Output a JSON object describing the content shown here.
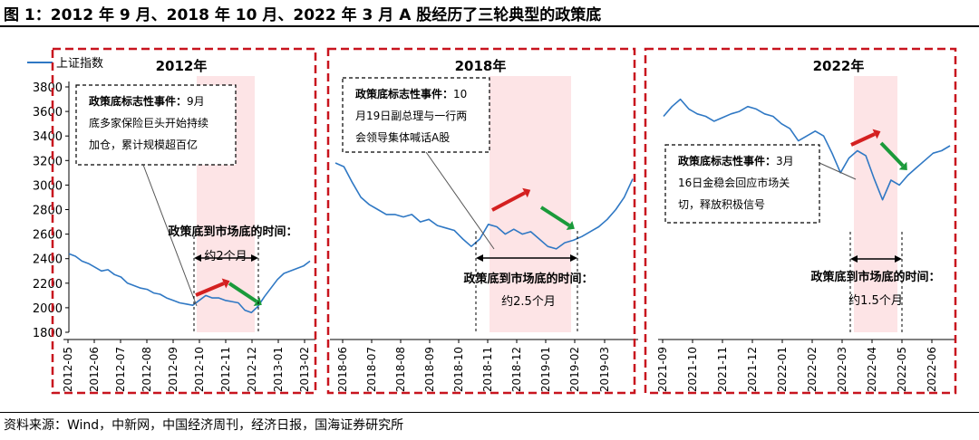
{
  "figure": {
    "title": "图 1：2012 年 9 月、2018 年 10 月、2022 年 3 月 A 股经历了三轮典型的政策底",
    "source": "资料来源：Wind，中新网，中国经济周刊，经济日报，国海证券研究所"
  },
  "chart_data": {
    "type": "line",
    "y_ticks": [
      "1800",
      "2000",
      "2200",
      "2400",
      "2600",
      "2800",
      "3000",
      "3200",
      "3400",
      "3600",
      "3800"
    ],
    "ylim": [
      1800,
      3900
    ],
    "grid": false,
    "legend": {
      "position": "top-left",
      "label": "上证指数",
      "color": "#2f78c4"
    },
    "series_color": "#2f78c4",
    "highlight_color": "#fde4e6",
    "frame_color": "#c8141e",
    "panels": [
      {
        "title": "2012年",
        "x_ticks": [
          "2012-05",
          "2012-06",
          "2012-07",
          "2012-08",
          "2012-09",
          "2012-10",
          "2012-11",
          "2012-12",
          "2013-01",
          "2013-02"
        ],
        "series": {
          "values": [
            2440,
            2420,
            2380,
            2360,
            2330,
            2300,
            2310,
            2270,
            2250,
            2200,
            2180,
            2160,
            2150,
            2120,
            2110,
            2080,
            2060,
            2040,
            2030,
            2020,
            2060,
            2100,
            2080,
            2080,
            2060,
            2050,
            2040,
            1980,
            1960,
            2010,
            2090,
            2160,
            2230,
            2280,
            2300,
            2320,
            2340,
            2380
          ]
        },
        "highlight": [
          "2012-10-01",
          "2012-12-10"
        ],
        "event": {
          "title": "政策底标志性事件：",
          "lines": [
            "9月",
            "底多家保险巨头开始持续",
            "加仓，累计规模超百亿"
          ]
        },
        "interval": {
          "label": "政策底到市场底的时间：",
          "value": "约2个月"
        }
      },
      {
        "title": "2018年",
        "x_ticks": [
          "2018-06",
          "2018-07",
          "2018-08",
          "2018-09",
          "2018-10",
          "2018-11",
          "2018-12",
          "2019-01",
          "2019-02",
          "2019-03"
        ],
        "series": {
          "values": [
            3180,
            3150,
            3020,
            2900,
            2840,
            2800,
            2760,
            2760,
            2740,
            2760,
            2700,
            2720,
            2670,
            2650,
            2630,
            2560,
            2500,
            2560,
            2680,
            2660,
            2600,
            2640,
            2600,
            2620,
            2560,
            2500,
            2480,
            2530,
            2550,
            2580,
            2620,
            2660,
            2720,
            2800,
            2900,
            3050
          ]
        },
        "highlight": [
          "2018-10-19",
          "2019-01-04"
        ],
        "event": {
          "title": "政策底标志性事件：",
          "lines": [
            "10",
            "月19日副总理与一行两",
            "会领导集体喊话A股"
          ]
        },
        "interval": {
          "label": "政策底到市场底的时间：",
          "value": "约2.5个月"
        }
      },
      {
        "title": "2022年",
        "x_ticks": [
          "2021-09",
          "2021-10",
          "2021-11",
          "2021-12",
          "2022-01",
          "2022-02",
          "2022-03",
          "2022-04",
          "2022-05",
          "2022-06"
        ],
        "series": {
          "values": [
            3560,
            3640,
            3700,
            3620,
            3580,
            3560,
            3520,
            3550,
            3580,
            3600,
            3640,
            3620,
            3580,
            3560,
            3500,
            3460,
            3360,
            3400,
            3440,
            3400,
            3260,
            3100,
            3220,
            3280,
            3240,
            3050,
            2880,
            3040,
            3000,
            3080,
            3140,
            3200,
            3260,
            3280,
            3320
          ]
        },
        "highlight": [
          "2022-03-16",
          "2022-04-27"
        ],
        "event": {
          "title": "政策底标志性事件：",
          "lines": [
            "3月",
            "16日金稳会回应市场关",
            "切，释放积极信号"
          ]
        },
        "interval": {
          "label": "政策底到市场底的时间：",
          "value": "约1.5个月"
        }
      }
    ]
  }
}
